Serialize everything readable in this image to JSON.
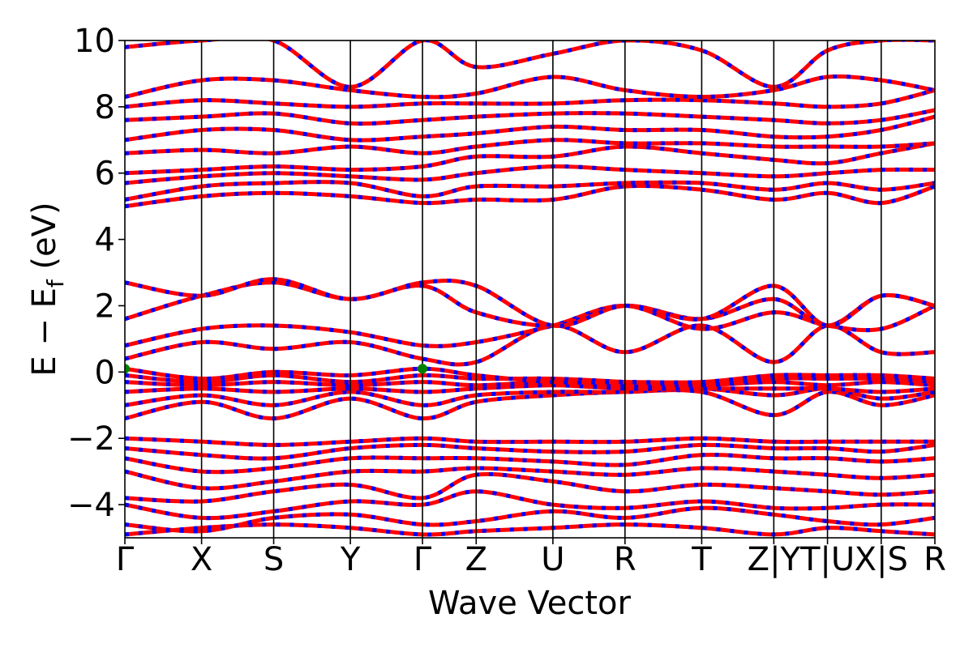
{
  "chart_data": {
    "type": "line",
    "title": "",
    "xlabel": "Wave Vector",
    "ylabel": "E − E",
    "ylabel_subscript": "f",
    "ylabel_unit": "(eV)",
    "ylim": [
      -5,
      10
    ],
    "yticks": [
      {
        "value": -4,
        "label": "−4"
      },
      {
        "value": -2,
        "label": "−2"
      },
      {
        "value": 0,
        "label": "0"
      },
      {
        "value": 2,
        "label": "2"
      },
      {
        "value": 4,
        "label": "4"
      },
      {
        "value": 6,
        "label": "6"
      },
      {
        "value": 8,
        "label": "8"
      },
      {
        "value": 10,
        "label": "10"
      }
    ],
    "k_path": [
      {
        "label": "Γ",
        "k": 0.0
      },
      {
        "label": "X",
        "k": 0.5
      },
      {
        "label": "S",
        "k": 0.97
      },
      {
        "label": "Y",
        "k": 1.47
      },
      {
        "label": "Γ",
        "k": 1.94
      },
      {
        "label": "Z",
        "k": 2.29
      },
      {
        "label": "U",
        "k": 2.79
      },
      {
        "label": "R",
        "k": 3.26
      },
      {
        "label": "T",
        "k": 3.76
      },
      {
        "label": "Z|Y",
        "k": 4.23
      },
      {
        "label": "T|U",
        "k": 4.58
      },
      {
        "label": "X|S",
        "k": 4.93
      },
      {
        "label": "R",
        "k": 5.28
      }
    ],
    "line_colors": {
      "spin_up": "#ff0000",
      "spin_down": "#0000ff",
      "vbm_marker": "#008000"
    },
    "markers": [
      {
        "name": "VBM",
        "k": 0.0,
        "energy": 0.1
      },
      {
        "name": "VBM",
        "k": 1.94,
        "energy": 0.1
      }
    ],
    "series": [
      {
        "band": 1,
        "energies": [
          -4.9,
          -4.7,
          -4.6,
          -4.7,
          -4.9,
          -4.8,
          -4.7,
          -4.6,
          -4.7,
          -4.9,
          -4.7,
          -4.8,
          -4.9
        ]
      },
      {
        "band": 2,
        "energies": [
          -4.6,
          -4.8,
          -4.4,
          -4.3,
          -4.6,
          -4.5,
          -4.2,
          -4.4,
          -4.1,
          -4.3,
          -4.5,
          -4.6,
          -4.4
        ]
      },
      {
        "band": 3,
        "energies": [
          -4.0,
          -4.4,
          -4.2,
          -3.9,
          -4.0,
          -3.6,
          -4.0,
          -4.1,
          -3.9,
          -4.1,
          -4.1,
          -4.0,
          -4.0
        ]
      },
      {
        "band": 4,
        "energies": [
          -3.8,
          -3.9,
          -3.6,
          -3.4,
          -3.8,
          -3.1,
          -3.3,
          -3.6,
          -3.4,
          -3.5,
          -3.6,
          -3.7,
          -3.6
        ]
      },
      {
        "band": 5,
        "energies": [
          -3.0,
          -3.5,
          -3.3,
          -3.0,
          -3.0,
          -2.9,
          -3.0,
          -3.1,
          -2.9,
          -3.0,
          -3.1,
          -3.2,
          -3.1
        ]
      },
      {
        "band": 6,
        "energies": [
          -2.6,
          -3.0,
          -2.9,
          -2.6,
          -2.6,
          -2.6,
          -2.7,
          -2.8,
          -2.5,
          -2.6,
          -2.6,
          -2.7,
          -2.6
        ]
      },
      {
        "band": 7,
        "energies": [
          -2.3,
          -2.5,
          -2.6,
          -2.3,
          -2.2,
          -2.3,
          -2.4,
          -2.4,
          -2.2,
          -2.3,
          -2.3,
          -2.4,
          -2.2
        ]
      },
      {
        "band": 8,
        "energies": [
          -2.0,
          -2.1,
          -2.2,
          -2.1,
          -2.0,
          -2.1,
          -2.1,
          -2.1,
          -2.0,
          -2.1,
          -2.1,
          -2.1,
          -2.1
        ]
      },
      {
        "band": 9,
        "energies": [
          -1.4,
          -0.9,
          -1.4,
          -0.8,
          -1.4,
          -0.9,
          -0.7,
          -0.6,
          -0.6,
          -1.3,
          -0.6,
          -1.0,
          -0.7
        ]
      },
      {
        "band": 10,
        "energies": [
          -1.0,
          -0.7,
          -1.0,
          -0.6,
          -1.0,
          -0.7,
          -0.6,
          -0.6,
          -0.5,
          -0.7,
          -0.5,
          -0.8,
          -0.6
        ]
      },
      {
        "band": 11,
        "energies": [
          -0.6,
          -0.5,
          -0.6,
          -0.5,
          -0.6,
          -0.5,
          -0.4,
          -0.5,
          -0.5,
          -0.5,
          -0.5,
          -0.6,
          -0.5
        ]
      },
      {
        "band": 12,
        "energies": [
          -0.3,
          -0.4,
          -0.3,
          -0.4,
          -0.3,
          -0.4,
          -0.3,
          -0.4,
          -0.4,
          -0.3,
          -0.4,
          -0.3,
          -0.4
        ]
      },
      {
        "band": 13,
        "energies": [
          -0.1,
          -0.3,
          -0.1,
          -0.3,
          -0.1,
          -0.2,
          -0.2,
          -0.3,
          -0.4,
          -0.2,
          -0.2,
          -0.2,
          -0.3
        ]
      },
      {
        "band": 14,
        "energies": [
          0.1,
          -0.2,
          0.0,
          -0.1,
          0.1,
          -0.1,
          -0.3,
          -0.3,
          -0.3,
          -0.1,
          -0.1,
          -0.1,
          -0.2
        ]
      },
      {
        "band": 15,
        "energies": [
          0.4,
          0.9,
          0.7,
          0.9,
          0.4,
          0.3,
          1.4,
          0.6,
          1.4,
          0.3,
          1.4,
          0.6,
          0.6
        ]
      },
      {
        "band": 16,
        "energies": [
          0.8,
          1.3,
          1.4,
          1.2,
          0.8,
          0.9,
          1.4,
          2.0,
          1.3,
          1.8,
          1.4,
          1.3,
          2.0
        ]
      },
      {
        "band": 17,
        "energies": [
          1.6,
          2.3,
          2.7,
          2.2,
          2.6,
          1.8,
          1.4,
          2.0,
          1.6,
          2.2,
          1.4,
          2.3,
          2.0
        ]
      },
      {
        "band": 18,
        "energies": [
          2.7,
          2.3,
          2.8,
          2.2,
          2.7,
          2.6,
          1.4,
          2.0,
          1.6,
          2.6,
          1.4,
          2.3,
          2.0
        ]
      },
      {
        "band": 19,
        "energies": [
          5.0,
          5.3,
          5.4,
          5.3,
          5.1,
          5.2,
          5.2,
          5.6,
          5.5,
          5.2,
          5.4,
          5.1,
          5.6
        ]
      },
      {
        "band": 20,
        "energies": [
          5.2,
          5.6,
          5.7,
          5.7,
          5.3,
          5.6,
          5.6,
          5.7,
          5.7,
          5.5,
          5.7,
          5.5,
          5.7
        ]
      },
      {
        "band": 21,
        "energies": [
          5.7,
          5.9,
          6.0,
          5.9,
          5.8,
          6.0,
          6.2,
          6.1,
          6.0,
          5.9,
          6.0,
          6.1,
          6.1
        ]
      },
      {
        "band": 22,
        "energies": [
          6.0,
          6.1,
          6.2,
          6.1,
          6.2,
          6.5,
          6.5,
          6.8,
          6.6,
          6.4,
          6.3,
          6.6,
          6.9
        ]
      },
      {
        "band": 23,
        "energies": [
          6.6,
          6.7,
          6.6,
          6.8,
          6.6,
          6.8,
          7.0,
          6.9,
          6.9,
          6.8,
          6.8,
          6.8,
          6.9
        ]
      },
      {
        "band": 24,
        "energies": [
          7.0,
          7.3,
          7.3,
          7.0,
          7.1,
          7.2,
          7.4,
          7.3,
          7.3,
          7.1,
          7.1,
          7.3,
          7.7
        ]
      },
      {
        "band": 25,
        "energies": [
          7.6,
          7.7,
          7.8,
          7.5,
          7.6,
          7.7,
          7.8,
          7.8,
          7.7,
          7.6,
          7.5,
          7.6,
          7.9
        ]
      },
      {
        "band": 26,
        "energies": [
          8.0,
          8.2,
          8.1,
          8.0,
          8.1,
          8.1,
          8.1,
          8.2,
          8.2,
          8.1,
          8.0,
          8.1,
          8.5
        ]
      },
      {
        "band": 27,
        "energies": [
          8.3,
          8.8,
          8.8,
          8.5,
          8.3,
          8.4,
          8.9,
          8.5,
          8.3,
          8.5,
          8.9,
          8.8,
          8.5
        ]
      },
      {
        "band": 28,
        "energies": [
          9.8,
          10.0,
          10.0,
          8.6,
          10.0,
          9.2,
          9.6,
          10.0,
          9.7,
          8.6,
          9.7,
          10.0,
          10.0
        ]
      }
    ]
  }
}
